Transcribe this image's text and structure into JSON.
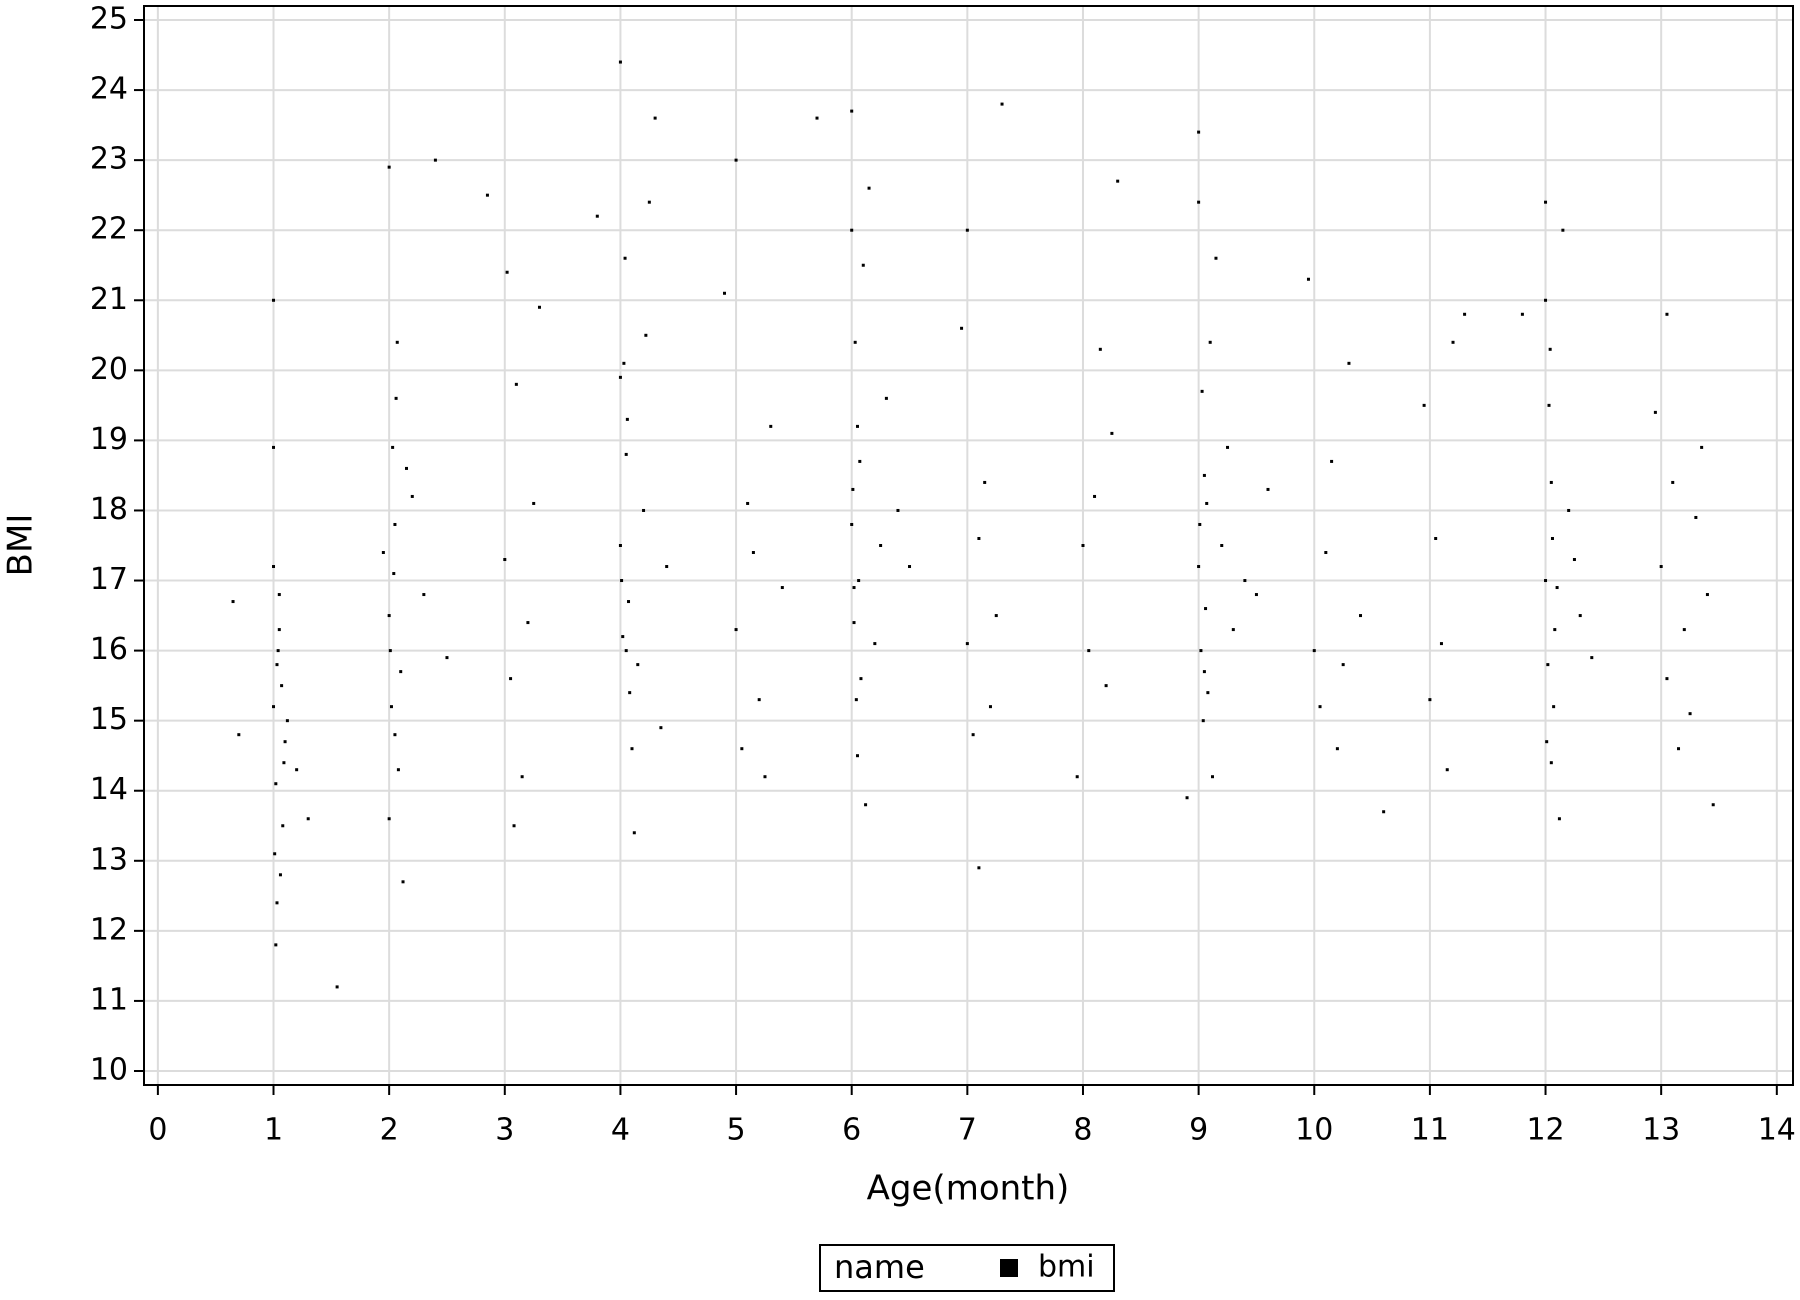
{
  "chart_data": {
    "type": "scatter",
    "x_label": "Age(month)",
    "y_label": "BMI",
    "legend_title": "name",
    "series": [
      {
        "name": "bmi",
        "color": "#000000",
        "x": [
          1.0,
          1.02,
          1.05,
          1.08,
          1.03,
          1.0,
          1.06,
          1.1,
          1.04,
          1.01,
          1.07,
          1.02,
          1.09,
          1.0,
          1.05,
          1.03,
          1.12,
          1.2,
          1.3,
          1.55,
          0.65,
          0.7,
          1.0,
          2.0,
          2.02,
          2.05,
          2.08,
          2.03,
          2.01,
          2.06,
          2.1,
          2.04,
          2.0,
          2.07,
          2.3,
          2.2,
          2.4,
          1.95,
          2.12,
          2.5,
          2.0,
          2.05,
          2.15,
          3.0,
          3.05,
          3.1,
          3.2,
          3.15,
          3.02,
          3.25,
          3.08,
          3.3,
          2.85,
          4.0,
          4.02,
          4.05,
          4.08,
          4.03,
          4.01,
          4.06,
          4.1,
          4.04,
          4.0,
          4.07,
          4.2,
          4.3,
          4.15,
          4.25,
          4.12,
          4.4,
          4.0,
          4.05,
          4.22,
          4.35,
          3.8,
          5.0,
          5.05,
          5.1,
          5.2,
          5.15,
          5.3,
          4.9,
          5.25,
          5.4,
          5.0,
          6.0,
          6.02,
          6.05,
          6.08,
          6.03,
          6.01,
          6.06,
          6.1,
          6.04,
          6.0,
          6.07,
          6.2,
          6.3,
          6.15,
          6.25,
          6.12,
          6.4,
          6.0,
          6.05,
          6.5,
          5.7,
          6.02,
          7.0,
          7.05,
          7.1,
          7.2,
          7.15,
          7.3,
          6.95,
          7.25,
          7.0,
          7.1,
          8.0,
          8.05,
          8.1,
          8.2,
          8.15,
          8.3,
          7.95,
          8.25,
          9.0,
          9.02,
          9.05,
          9.08,
          9.03,
          9.01,
          9.06,
          9.1,
          9.04,
          9.0,
          9.07,
          9.2,
          9.3,
          9.15,
          9.25,
          9.12,
          9.4,
          9.0,
          9.05,
          9.5,
          9.6,
          8.9,
          10.0,
          10.05,
          10.1,
          10.2,
          10.15,
          10.3,
          9.95,
          10.25,
          10.4,
          10.6,
          11.0,
          11.05,
          11.1,
          11.2,
          10.95,
          11.15,
          11.3,
          12.0,
          12.02,
          12.05,
          12.08,
          12.03,
          12.01,
          12.06,
          12.1,
          12.04,
          12.0,
          12.07,
          12.2,
          12.3,
          12.15,
          12.25,
          12.12,
          12.4,
          12.0,
          12.05,
          11.8,
          13.0,
          13.05,
          13.1,
          13.2,
          13.15,
          13.3,
          12.95,
          13.25,
          13.4,
          13.45,
          13.05,
          13.35
        ],
        "values": [
          15.2,
          14.1,
          16.3,
          13.5,
          15.8,
          17.2,
          12.8,
          14.7,
          16.0,
          13.1,
          15.5,
          11.8,
          14.4,
          18.9,
          16.8,
          12.4,
          15.0,
          14.3,
          13.6,
          11.2,
          16.7,
          14.8,
          21.0,
          16.5,
          15.2,
          17.8,
          14.3,
          18.9,
          16.0,
          19.6,
          15.7,
          17.1,
          13.6,
          20.4,
          16.8,
          18.2,
          23.0,
          17.4,
          12.7,
          15.9,
          22.9,
          14.8,
          18.6,
          17.3,
          15.6,
          19.8,
          16.4,
          14.2,
          21.4,
          18.1,
          13.5,
          20.9,
          22.5,
          17.5,
          16.2,
          18.8,
          15.4,
          20.1,
          17.0,
          19.3,
          14.6,
          21.6,
          24.4,
          16.7,
          18.0,
          23.6,
          15.8,
          22.4,
          13.4,
          17.2,
          19.9,
          16.0,
          20.5,
          14.9,
          22.2,
          16.3,
          14.6,
          18.1,
          15.3,
          17.4,
          19.2,
          21.1,
          14.2,
          16.9,
          23.0,
          17.8,
          16.4,
          19.2,
          15.6,
          20.4,
          18.3,
          17.0,
          21.5,
          15.3,
          23.7,
          18.7,
          16.1,
          19.6,
          22.6,
          17.5,
          13.8,
          18.0,
          22.0,
          14.5,
          17.2,
          23.6,
          16.9,
          16.1,
          14.8,
          17.6,
          15.2,
          18.4,
          23.8,
          20.6,
          16.5,
          22.0,
          12.9,
          17.5,
          16.0,
          18.2,
          15.5,
          20.3,
          22.7,
          14.2,
          19.1,
          17.2,
          16.0,
          18.5,
          15.4,
          19.7,
          17.8,
          16.6,
          20.4,
          15.0,
          23.4,
          18.1,
          17.5,
          16.3,
          21.6,
          18.9,
          14.2,
          17.0,
          22.4,
          15.7,
          16.8,
          18.3,
          13.9,
          16.0,
          15.2,
          17.4,
          14.6,
          18.7,
          20.1,
          21.3,
          15.8,
          16.5,
          13.7,
          15.3,
          17.6,
          16.1,
          20.4,
          19.5,
          14.3,
          20.8,
          17.0,
          15.8,
          18.4,
          16.3,
          19.5,
          14.7,
          17.6,
          16.9,
          20.3,
          22.4,
          15.2,
          18.0,
          16.5,
          22.0,
          17.3,
          13.6,
          15.9,
          21.0,
          14.4,
          20.8,
          17.2,
          15.6,
          18.4,
          16.3,
          14.6,
          17.9,
          19.4,
          15.1,
          16.8,
          13.8,
          20.8,
          18.9
        ]
      }
    ],
    "xlim": [
      -0.12,
      14.14
    ],
    "ylim": [
      9.8,
      25.2
    ],
    "xticks": [
      0,
      1,
      2,
      3,
      4,
      5,
      6,
      7,
      8,
      9,
      10,
      11,
      12,
      13,
      14
    ],
    "yticks": [
      10,
      11,
      12,
      13,
      14,
      15,
      16,
      17,
      18,
      19,
      20,
      21,
      22,
      23,
      24,
      25
    ],
    "grid": true,
    "legend": "bottom"
  }
}
